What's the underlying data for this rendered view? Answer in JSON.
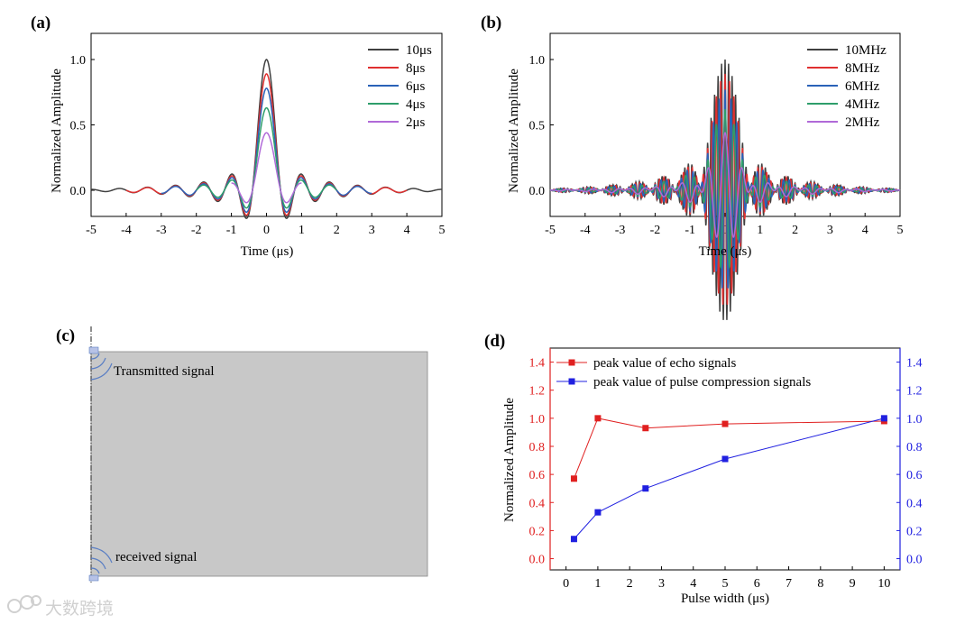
{
  "chart_data": [
    {
      "id": "a",
      "type": "line",
      "panel_label": "(a)",
      "xlabel": "Time (μs)",
      "ylabel": "Normalized  Amplitude",
      "xlim": [
        -5,
        5
      ],
      "ylim": [
        -0.2,
        1.2
      ],
      "x_ticks": [
        "-5",
        "-4",
        "-3",
        "-2",
        "-1",
        "0",
        "1",
        "2",
        "3",
        "4",
        "5"
      ],
      "y_ticks": [
        "0.0",
        "0.5",
        "1.0"
      ],
      "legend_position": "top-right",
      "series": [
        {
          "name": "10μs",
          "color": "#404040",
          "peak": 1.0,
          "extent": 5.0,
          "freq": 2.5
        },
        {
          "name": "8μs",
          "color": "#e03030",
          "peak": 0.89,
          "extent": 4.0,
          "freq": 2.5
        },
        {
          "name": "6μs",
          "color": "#2a62b8",
          "peak": 0.78,
          "extent": 3.0,
          "freq": 2.5
        },
        {
          "name": "4μs",
          "color": "#2e9e6b",
          "peak": 0.63,
          "extent": 2.0,
          "freq": 2.5
        },
        {
          "name": "2μs",
          "color": "#b06ad8",
          "peak": 0.44,
          "extent": 1.0,
          "freq": 2.5
        }
      ]
    },
    {
      "id": "b",
      "type": "line",
      "panel_label": "(b)",
      "xlabel": "Time (μs)",
      "ylabel": "Normalized  Amplitude",
      "xlim": [
        -5,
        5
      ],
      "ylim": [
        -0.2,
        1.2
      ],
      "x_ticks": [
        "-5",
        "-4",
        "-3",
        "-2",
        "-1",
        "0",
        "1",
        "2",
        "3",
        "4",
        "5"
      ],
      "y_ticks": [
        "0.0",
        "0.5",
        "1.0"
      ],
      "legend_position": "top-right",
      "series": [
        {
          "name": "10MHz",
          "color": "#404040",
          "peak": 1.0,
          "extent": 5.0,
          "freq": 10
        },
        {
          "name": "8MHz",
          "color": "#e03030",
          "peak": 0.89,
          "extent": 5.0,
          "freq": 8
        },
        {
          "name": "6MHz",
          "color": "#2a62b8",
          "peak": 0.77,
          "extent": 5.0,
          "freq": 6
        },
        {
          "name": "4MHz",
          "color": "#2e9e6b",
          "peak": 0.62,
          "extent": 5.0,
          "freq": 4
        },
        {
          "name": "2MHz",
          "color": "#b06ad8",
          "peak": 0.44,
          "extent": 5.0,
          "freq": 2
        }
      ]
    },
    {
      "id": "d",
      "type": "line",
      "panel_label": "(d)",
      "xlabel": "Pulse width (μs)",
      "ylabel": "Normalized  Amplitude",
      "x_ticks": [
        "0",
        "1",
        "2",
        "3",
        "4",
        "5",
        "6",
        "7",
        "8",
        "9",
        "10"
      ],
      "y_ticks_left": [
        "0.0",
        "0.2",
        "0.4",
        "0.6",
        "0.8",
        "1.0",
        "1.2",
        "1.4"
      ],
      "y_ticks_right": [
        "0.0",
        "0.2",
        "0.4",
        "0.6",
        "0.8",
        "1.0",
        "1.2",
        "1.4"
      ],
      "x_range": [
        -0.5,
        10.5
      ],
      "ylim_left": [
        -0.08,
        1.5
      ],
      "ylim_right": [
        -0.08,
        1.5
      ],
      "legend_position": "top-left",
      "series": [
        {
          "name": "peak value of echo signals",
          "axis": "left",
          "color": "#e02020",
          "x": [
            0.25,
            1,
            2.5,
            5,
            10
          ],
          "y": [
            0.57,
            1.0,
            0.93,
            0.96,
            0.98
          ]
        },
        {
          "name": "peak value of pulse compression signals",
          "axis": "right",
          "color": "#2020e0",
          "x": [
            0.25,
            1,
            2.5,
            5,
            10
          ],
          "y": [
            0.14,
            0.33,
            0.5,
            0.71,
            1.0
          ]
        }
      ]
    }
  ],
  "panel_c": {
    "label": "(c)",
    "transmitted_label": "Transmitted signal",
    "received_label": "received signal",
    "block_color": "#c8c8c8",
    "wave_color": "#5b7fc4"
  },
  "watermark": {
    "text": "大数跨境"
  }
}
